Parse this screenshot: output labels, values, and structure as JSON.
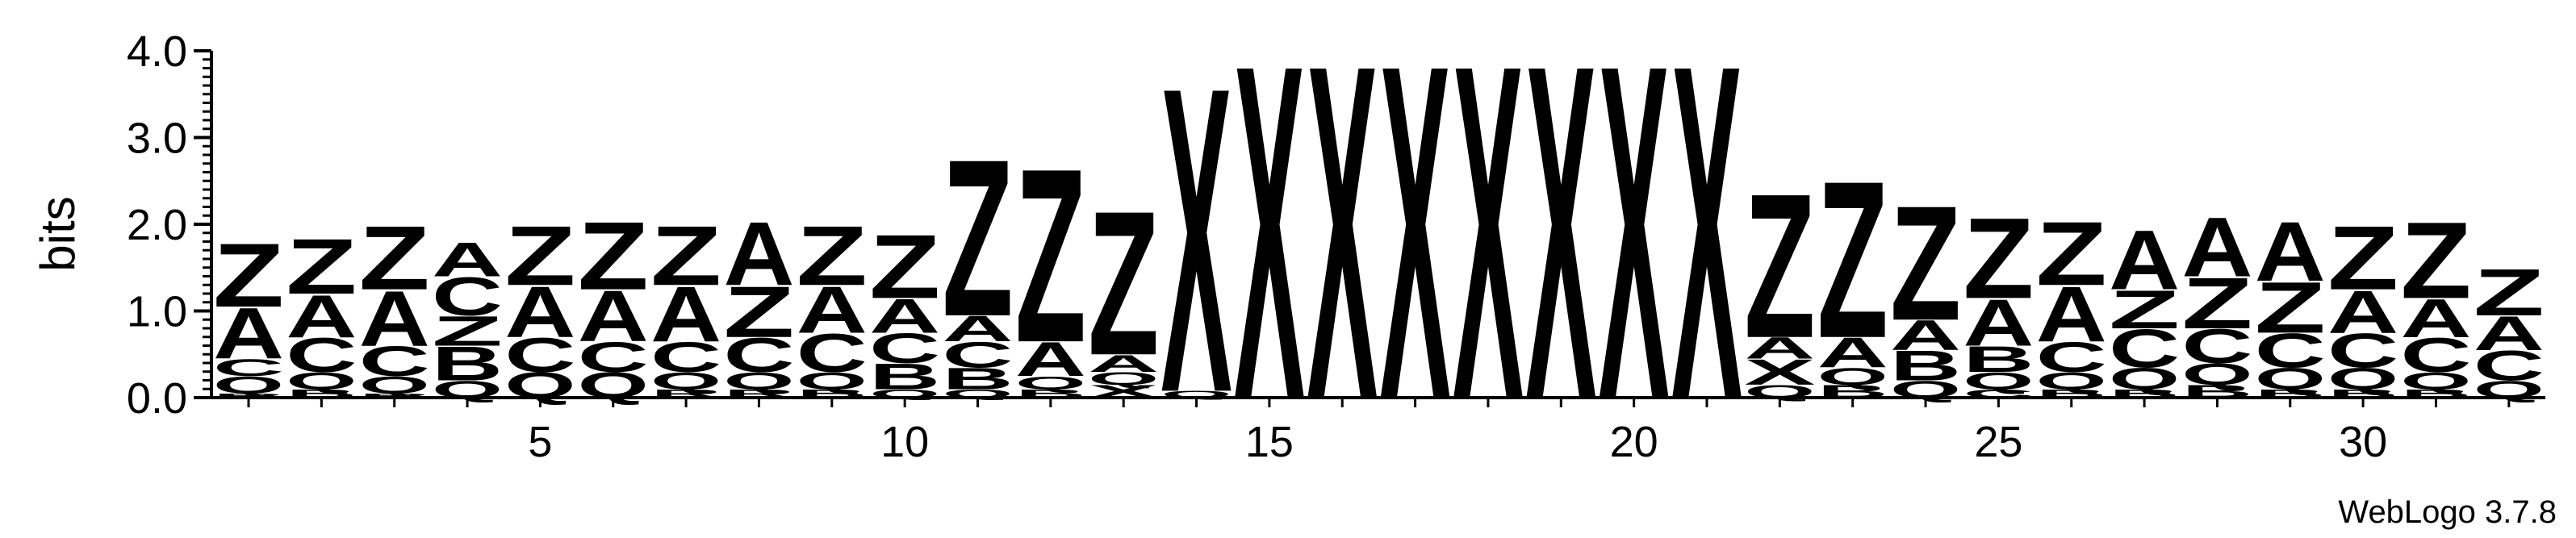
{
  "chart_data": {
    "type": "sequence_logo",
    "ylabel": "bits",
    "ylim": [
      0,
      4
    ],
    "yticks": [
      "0.0",
      "1.0",
      "2.0",
      "3.0",
      "4.0"
    ],
    "xticks": [
      "5",
      "10",
      "15",
      "20",
      "25",
      "30"
    ],
    "footer": "WebLogo 3.7.8",
    "colors": {
      "Z": "#ff0000",
      "A": "#ff0000",
      "X": "#0000ff",
      "C": "#008000",
      "B": "#ff8c00",
      "Q": "#ff0000",
      "R": "#ff8c00"
    },
    "positions": [
      {
        "pos": 1,
        "stack": [
          {
            "l": "R",
            "h": 0.05
          },
          {
            "l": "Q",
            "h": 0.2
          },
          {
            "l": "C",
            "h": 0.2
          },
          {
            "l": "A",
            "h": 0.6
          },
          {
            "l": "Z",
            "h": 0.75
          }
        ]
      },
      {
        "pos": 2,
        "stack": [
          {
            "l": "B",
            "h": 0.1
          },
          {
            "l": "Q",
            "h": 0.2
          },
          {
            "l": "C",
            "h": 0.4
          },
          {
            "l": "A",
            "h": 0.5
          },
          {
            "l": "Z",
            "h": 0.65
          }
        ]
      },
      {
        "pos": 3,
        "stack": [
          {
            "l": "R",
            "h": 0.05
          },
          {
            "l": "Q",
            "h": 0.2
          },
          {
            "l": "C",
            "h": 0.35
          },
          {
            "l": "A",
            "h": 0.65
          },
          {
            "l": "Z",
            "h": 0.75
          }
        ]
      },
      {
        "pos": 4,
        "stack": [
          {
            "l": "Q",
            "h": 0.2
          },
          {
            "l": "B",
            "h": 0.4
          },
          {
            "l": "Z",
            "h": 0.35
          },
          {
            "l": "C",
            "h": 0.45
          },
          {
            "l": "A",
            "h": 0.4
          }
        ]
      },
      {
        "pos": 5,
        "stack": [
          {
            "l": "Q",
            "h": 0.3
          },
          {
            "l": "C",
            "h": 0.4
          },
          {
            "l": "A",
            "h": 0.6
          },
          {
            "l": "Z",
            "h": 0.7
          }
        ]
      },
      {
        "pos": 6,
        "stack": [
          {
            "l": "Q",
            "h": 0.3
          },
          {
            "l": "C",
            "h": 0.35
          },
          {
            "l": "A",
            "h": 0.6
          },
          {
            "l": "Z",
            "h": 0.8
          }
        ]
      },
      {
        "pos": 7,
        "stack": [
          {
            "l": "R",
            "h": 0.1
          },
          {
            "l": "Q",
            "h": 0.2
          },
          {
            "l": "C",
            "h": 0.35
          },
          {
            "l": "A",
            "h": 0.65
          },
          {
            "l": "Z",
            "h": 0.7
          }
        ]
      },
      {
        "pos": 8,
        "stack": [
          {
            "l": "R",
            "h": 0.1
          },
          {
            "l": "Q",
            "h": 0.2
          },
          {
            "l": "C",
            "h": 0.4
          },
          {
            "l": "Z",
            "h": 0.6
          },
          {
            "l": "A",
            "h": 0.75
          }
        ]
      },
      {
        "pos": 9,
        "stack": [
          {
            "l": "B",
            "h": 0.1
          },
          {
            "l": "Q",
            "h": 0.2
          },
          {
            "l": "C",
            "h": 0.45
          },
          {
            "l": "A",
            "h": 0.55
          },
          {
            "l": "Z",
            "h": 0.7
          }
        ]
      },
      {
        "pos": 10,
        "stack": [
          {
            "l": "Q",
            "h": 0.1
          },
          {
            "l": "B",
            "h": 0.3
          },
          {
            "l": "C",
            "h": 0.35
          },
          {
            "l": "A",
            "h": 0.4
          },
          {
            "l": "Z",
            "h": 0.75
          }
        ]
      },
      {
        "pos": 11,
        "stack": [
          {
            "l": "Q",
            "h": 0.1
          },
          {
            "l": "B",
            "h": 0.25
          },
          {
            "l": "C",
            "h": 0.3
          },
          {
            "l": "A",
            "h": 0.3
          },
          {
            "l": "Z",
            "h": 1.85
          }
        ]
      },
      {
        "pos": 12,
        "stack": [
          {
            "l": "B",
            "h": 0.1
          },
          {
            "l": "Q",
            "h": 0.15
          },
          {
            "l": "A",
            "h": 0.4
          },
          {
            "l": "Z",
            "h": 2.05
          }
        ]
      },
      {
        "pos": 13,
        "stack": [
          {
            "l": "X",
            "h": 0.15
          },
          {
            "l": "Q",
            "h": 0.15
          },
          {
            "l": "A",
            "h": 0.2
          },
          {
            "l": "Z",
            "h": 1.7
          }
        ]
      },
      {
        "pos": 14,
        "stack": [
          {
            "l": "Q",
            "h": 0.08
          },
          {
            "l": "X",
            "h": 3.6
          }
        ]
      },
      {
        "pos": 15,
        "stack": [
          {
            "l": "X",
            "h": 3.95
          }
        ]
      },
      {
        "pos": 16,
        "stack": [
          {
            "l": "X",
            "h": 3.95
          }
        ]
      },
      {
        "pos": 17,
        "stack": [
          {
            "l": "X",
            "h": 3.95
          }
        ]
      },
      {
        "pos": 18,
        "stack": [
          {
            "l": "X",
            "h": 3.95
          }
        ]
      },
      {
        "pos": 19,
        "stack": [
          {
            "l": "X",
            "h": 3.95
          }
        ]
      },
      {
        "pos": 20,
        "stack": [
          {
            "l": "X",
            "h": 3.95
          }
        ]
      },
      {
        "pos": 21,
        "stack": [
          {
            "l": "X",
            "h": 3.95
          }
        ]
      },
      {
        "pos": 22,
        "stack": [
          {
            "l": "Q",
            "h": 0.15
          },
          {
            "l": "X",
            "h": 0.3
          },
          {
            "l": "A",
            "h": 0.25
          },
          {
            "l": "Z",
            "h": 1.7
          }
        ]
      },
      {
        "pos": 23,
        "stack": [
          {
            "l": "B",
            "h": 0.15
          },
          {
            "l": "Q",
            "h": 0.2
          },
          {
            "l": "A",
            "h": 0.35
          },
          {
            "l": "Z",
            "h": 1.85
          }
        ]
      },
      {
        "pos": 24,
        "stack": [
          {
            "l": "Q",
            "h": 0.2
          },
          {
            "l": "B",
            "h": 0.35
          },
          {
            "l": "A",
            "h": 0.35
          },
          {
            "l": "Z",
            "h": 1.35
          }
        ]
      },
      {
        "pos": 25,
        "stack": [
          {
            "l": "C",
            "h": 0.1
          },
          {
            "l": "Q",
            "h": 0.2
          },
          {
            "l": "B",
            "h": 0.3
          },
          {
            "l": "A",
            "h": 0.55
          },
          {
            "l": "Z",
            "h": 0.95
          }
        ]
      },
      {
        "pos": 26,
        "stack": [
          {
            "l": "B",
            "h": 0.1
          },
          {
            "l": "Q",
            "h": 0.2
          },
          {
            "l": "C",
            "h": 0.35
          },
          {
            "l": "A",
            "h": 0.65
          },
          {
            "l": "Z",
            "h": 0.75
          }
        ]
      },
      {
        "pos": 27,
        "stack": [
          {
            "l": "B",
            "h": 0.1
          },
          {
            "l": "Q",
            "h": 0.25
          },
          {
            "l": "C",
            "h": 0.45
          },
          {
            "l": "Z",
            "h": 0.45
          },
          {
            "l": "A",
            "h": 0.7
          }
        ]
      },
      {
        "pos": 28,
        "stack": [
          {
            "l": "B",
            "h": 0.15
          },
          {
            "l": "Q",
            "h": 0.25
          },
          {
            "l": "C",
            "h": 0.4
          },
          {
            "l": "Z",
            "h": 0.6
          },
          {
            "l": "A",
            "h": 0.7
          }
        ]
      },
      {
        "pos": 29,
        "stack": [
          {
            "l": "B",
            "h": 0.1
          },
          {
            "l": "Q",
            "h": 0.25
          },
          {
            "l": "C",
            "h": 0.4
          },
          {
            "l": "Z",
            "h": 0.6
          },
          {
            "l": "A",
            "h": 0.7
          }
        ]
      },
      {
        "pos": 30,
        "stack": [
          {
            "l": "B",
            "h": 0.1
          },
          {
            "l": "Q",
            "h": 0.25
          },
          {
            "l": "C",
            "h": 0.4
          },
          {
            "l": "A",
            "h": 0.5
          },
          {
            "l": "Z",
            "h": 0.75
          }
        ]
      },
      {
        "pos": 31,
        "stack": [
          {
            "l": "B",
            "h": 0.1
          },
          {
            "l": "Q",
            "h": 0.2
          },
          {
            "l": "C",
            "h": 0.4
          },
          {
            "l": "A",
            "h": 0.45
          },
          {
            "l": "Z",
            "h": 0.9
          }
        ]
      },
      {
        "pos": 32,
        "stack": [
          {
            "l": "Q",
            "h": 0.2
          },
          {
            "l": "C",
            "h": 0.35
          },
          {
            "l": "A",
            "h": 0.4
          },
          {
            "l": "Z",
            "h": 0.55
          }
        ]
      }
    ]
  }
}
